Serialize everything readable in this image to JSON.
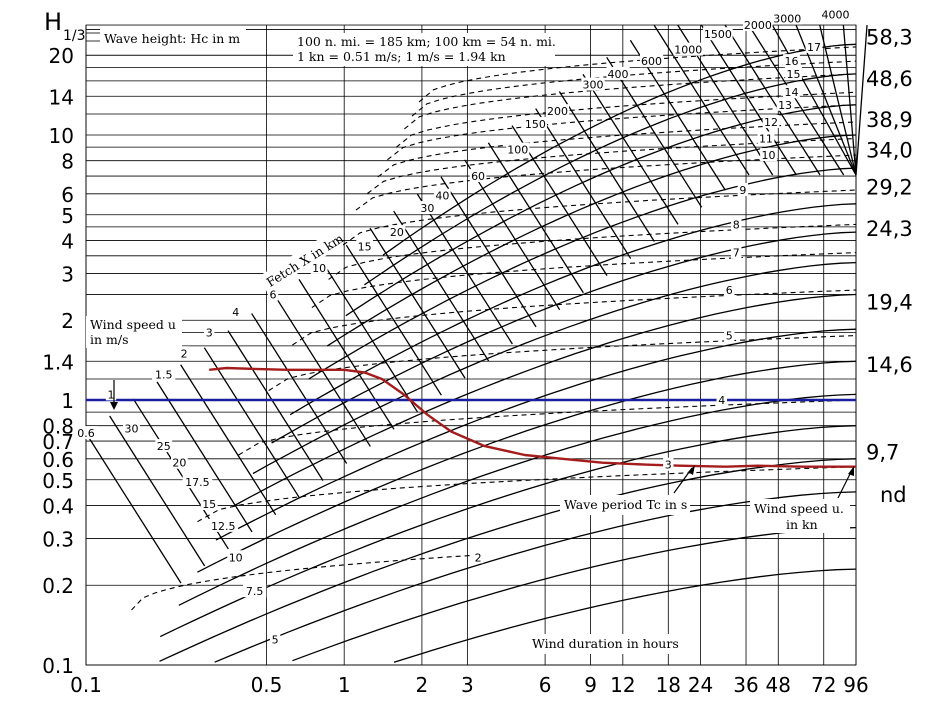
{
  "chart_data": {
    "type": "line",
    "title": "",
    "x_axis": {
      "label": "Wind duration in hours",
      "scale": "log",
      "tick_labels": [
        "0.1",
        "0.5",
        "1",
        "2",
        "3",
        "6",
        "9",
        "12",
        "18",
        "24",
        "36",
        "48",
        "72",
        "96"
      ],
      "tick_values": [
        0.1,
        0.5,
        1,
        2,
        3,
        6,
        9,
        12,
        18,
        24,
        36,
        48,
        72,
        96
      ],
      "range": [
        0.1,
        96
      ]
    },
    "y_axis": {
      "label": "H1/3",
      "label_main": "H",
      "label_sub": "1/3",
      "scale": "log",
      "tick_labels": [
        "20",
        "14",
        "10",
        "8",
        "6",
        "5",
        "4",
        "3",
        "2",
        "1.4",
        "1",
        "0.8",
        "0.7",
        "0.6",
        "0.5",
        "0.4",
        "0.3",
        "0.2",
        "0.1"
      ],
      "tick_values": [
        20,
        14,
        10,
        8,
        6,
        5,
        4,
        3,
        2,
        1.4,
        1,
        0.8,
        0.7,
        0.6,
        0.5,
        0.4,
        0.3,
        0.2,
        0.1
      ],
      "range": [
        0.1,
        26
      ],
      "right_labels": [
        {
          "text": "58,3",
          "y": 23.5
        },
        {
          "text": "48,6",
          "y": 16.4
        },
        {
          "text": "38,9",
          "y": 11.5
        },
        {
          "text": "34,0",
          "y": 8.8
        },
        {
          "text": "29,2",
          "y": 6.4
        },
        {
          "text": "24,3",
          "y": 4.45
        },
        {
          "text": "19,4",
          "y": 2.35
        },
        {
          "text": "14,6",
          "y": 1.37
        },
        {
          "text": "9,7",
          "y": 0.64
        }
      ],
      "right_suffix": "nd"
    },
    "grid": true,
    "notes": {
      "wave_height": "Wave height: Hc in m",
      "conversion_1": "100 n. mi. = 185 km;  100 km = 54 n. mi.",
      "conversion_2": "1 kn = 0.51 m/s;  1 m/s = 1.94 kn",
      "fetch": "Fetch X in km",
      "wind_speed_ms_1": "Wind speed u",
      "wind_speed_ms_2": "in m/s",
      "wave_period": "Wave period Tc in s",
      "wind_speed_kn_1": "Wind speed u.",
      "wind_speed_kn_2": "in kn",
      "duration": "Wind duration in hours"
    },
    "wind_speed_ms_labels": [
      {
        "text": "0.6",
        "x": 0.1,
        "y": 0.75
      },
      {
        "text": "1",
        "x": 0.125,
        "y": 1.05
      },
      {
        "text": "1.5",
        "x": 0.2,
        "y": 1.25
      },
      {
        "text": "2",
        "x": 0.24,
        "y": 1.5
      },
      {
        "text": "3",
        "x": 0.3,
        "y": 1.8
      },
      {
        "text": "4",
        "x": 0.38,
        "y": 2.15
      }
    ],
    "wind_speed_kn_labels": [
      {
        "text": "30",
        "x": 0.15,
        "y": 0.78
      },
      {
        "text": "25",
        "x": 0.2,
        "y": 0.67
      },
      {
        "text": "20",
        "x": 0.23,
        "y": 0.58
      },
      {
        "text": "17.5",
        "x": 0.27,
        "y": 0.49
      },
      {
        "text": "15",
        "x": 0.3,
        "y": 0.405
      },
      {
        "text": "12.5",
        "x": 0.34,
        "y": 0.335
      },
      {
        "text": "10",
        "x": 0.38,
        "y": 0.255
      },
      {
        "text": "7.5",
        "x": 0.45,
        "y": 0.19
      },
      {
        "text": "5",
        "x": 0.54,
        "y": 0.125
      }
    ],
    "fetch_labels": [
      {
        "text": "6",
        "x": 0.53,
        "y": 2.5
      },
      {
        "text": "10",
        "x": 0.8,
        "y": 3.15
      },
      {
        "text": "15",
        "x": 1.2,
        "y": 3.8
      },
      {
        "text": "20",
        "x": 1.6,
        "y": 4.3
      },
      {
        "text": "30",
        "x": 2.1,
        "y": 5.3
      },
      {
        "text": "40",
        "x": 2.4,
        "y": 5.9
      },
      {
        "text": "60",
        "x": 3.3,
        "y": 7.0
      },
      {
        "text": "100",
        "x": 4.7,
        "y": 8.8
      },
      {
        "text": "150",
        "x": 5.5,
        "y": 11.0
      },
      {
        "text": "200",
        "x": 6.7,
        "y": 12.3
      },
      {
        "text": "300",
        "x": 9.2,
        "y": 15.5
      },
      {
        "text": "400",
        "x": 11.5,
        "y": 17.0
      },
      {
        "text": "600",
        "x": 15.5,
        "y": 19.0
      },
      {
        "text": "1000",
        "x": 21.5,
        "y": 21.0
      },
      {
        "text": "1500",
        "x": 28,
        "y": 24.0
      },
      {
        "text": "2000",
        "x": 40,
        "y": 26.0
      },
      {
        "text": "3000",
        "x": 52,
        "y": 27.5
      },
      {
        "text": "4000",
        "x": 80,
        "y": 28.5
      }
    ],
    "wave_period_labels": [
      {
        "text": "17",
        "x": 66,
        "y": 21.5
      },
      {
        "text": "16",
        "x": 54,
        "y": 19.0
      },
      {
        "text": "15",
        "x": 55,
        "y": 17.0
      },
      {
        "text": "14",
        "x": 54,
        "y": 14.5
      },
      {
        "text": "13",
        "x": 51,
        "y": 13.0
      },
      {
        "text": "12",
        "x": 45,
        "y": 11.2
      },
      {
        "text": "11",
        "x": 43,
        "y": 9.7
      },
      {
        "text": "10",
        "x": 44,
        "y": 8.4
      },
      {
        "text": "9",
        "x": 35,
        "y": 6.2
      },
      {
        "text": "8",
        "x": 33,
        "y": 4.6
      },
      {
        "text": "7",
        "x": 33,
        "y": 3.6
      },
      {
        "text": "6",
        "x": 31,
        "y": 2.6
      },
      {
        "text": "5",
        "x": 31,
        "y": 1.75
      },
      {
        "text": "4",
        "x": 29,
        "y": 1.0
      },
      {
        "text": "3",
        "x": 18,
        "y": 0.57
      },
      {
        "text": "2",
        "x": 3.3,
        "y": 0.255
      }
    ],
    "series": [
      {
        "color": "#1a1f9e",
        "style": "horizontal line",
        "x": [
          0.1,
          96
        ],
        "y": [
          1.0,
          1.0
        ]
      },
      {
        "color": "#a51c1c",
        "x": [
          0.3,
          0.35,
          0.45,
          0.6,
          0.8,
          1.0,
          1.2,
          1.4,
          1.7,
          2.1,
          2.6,
          3.5,
          5.0,
          7.0,
          10,
          15,
          20,
          30,
          40,
          60,
          80,
          96
        ],
        "y": [
          1.3,
          1.32,
          1.31,
          1.3,
          1.3,
          1.3,
          1.27,
          1.2,
          1.05,
          0.88,
          0.76,
          0.67,
          0.62,
          0.6,
          0.58,
          0.57,
          0.565,
          0.56,
          0.565,
          0.56,
          0.56,
          0.56
        ]
      }
    ]
  }
}
